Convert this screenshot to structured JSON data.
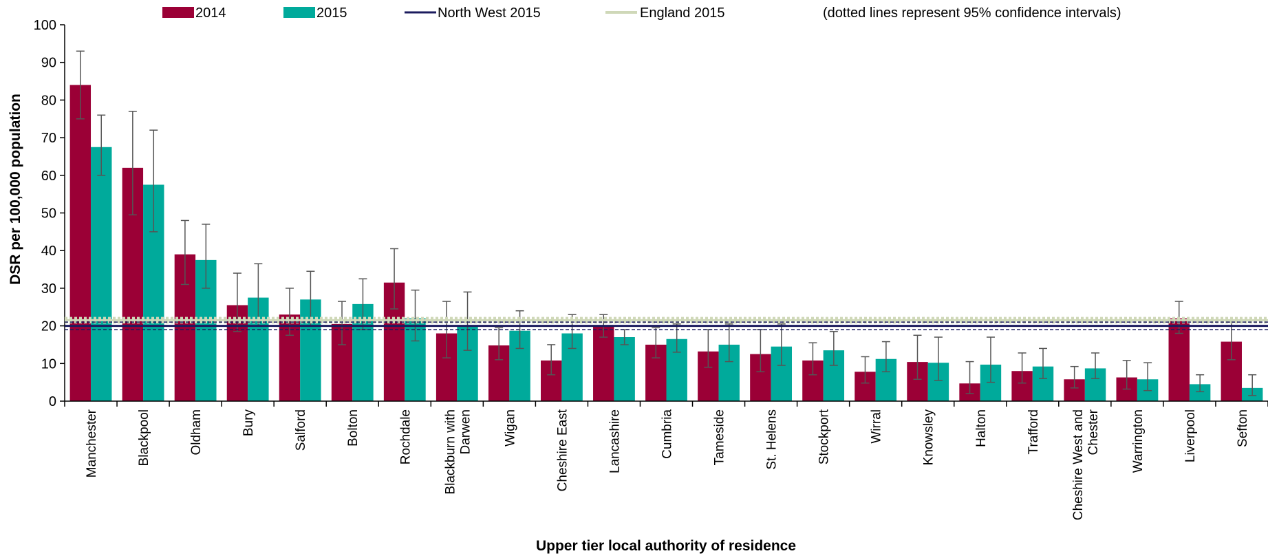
{
  "chart_data": {
    "type": "bar",
    "title": "",
    "xlabel": "Upper tier local authority of residence",
    "ylabel": "DSR per 100,000 population",
    "ylim": [
      0,
      100
    ],
    "yticks": [
      0,
      10,
      20,
      30,
      40,
      50,
      60,
      70,
      80,
      90,
      100
    ],
    "grid": false,
    "legend_position": "top",
    "note": "(dotted lines represent 95% confidence intervals)",
    "categories": [
      [
        "Manchester"
      ],
      [
        "Blackpool"
      ],
      [
        "Oldham"
      ],
      [
        "Bury"
      ],
      [
        "Salford"
      ],
      [
        "Bolton"
      ],
      [
        "Rochdale"
      ],
      [
        "Blackburn with",
        "Darwen"
      ],
      [
        "Wigan"
      ],
      [
        "Cheshire East"
      ],
      [
        "Lancashire"
      ],
      [
        "Cumbria"
      ],
      [
        "Tameside"
      ],
      [
        "St. Helens"
      ],
      [
        "Stockport"
      ],
      [
        "Wirral"
      ],
      [
        "Knowsley"
      ],
      [
        "Halton"
      ],
      [
        "Trafford"
      ],
      [
        "Cheshire West and",
        "Chester"
      ],
      [
        "Warrington"
      ],
      [
        "Liverpool"
      ],
      [
        "Sefton"
      ]
    ],
    "series": [
      {
        "name": "2014",
        "color": "#9b0036",
        "values": [
          84,
          62,
          39,
          25.5,
          23,
          20.5,
          31.5,
          18,
          14.8,
          10.8,
          20,
          15,
          13.2,
          12.5,
          10.8,
          7.8,
          10.4,
          4.7,
          8,
          5.8,
          6.3,
          22,
          15.8
        ],
        "ci_low": [
          75,
          49.5,
          31,
          18.5,
          17.5,
          15,
          24.5,
          11.5,
          11,
          7,
          17,
          11.5,
          9,
          7.8,
          7,
          4.8,
          5.8,
          2,
          4.8,
          3.5,
          3.2,
          18,
          11
        ],
        "ci_high": [
          93,
          77,
          48,
          34,
          30,
          26.5,
          40.5,
          26.5,
          19.5,
          15,
          23,
          19.5,
          19,
          19,
          15.5,
          11.8,
          17.5,
          10.5,
          12.8,
          9.2,
          10.8,
          26.5,
          21
        ]
      },
      {
        "name": "2015",
        "color": "#00aa9b",
        "values": [
          67.5,
          57.5,
          37.5,
          27.5,
          27,
          25.8,
          22,
          20,
          18.7,
          18,
          17,
          16.5,
          15,
          14.5,
          13.5,
          11.2,
          10.2,
          9.7,
          9.2,
          8.7,
          5.8,
          4.5,
          3.5
        ],
        "ci_low": [
          60,
          45,
          30,
          20,
          20,
          19,
          16,
          13.5,
          14,
          14,
          15,
          13,
          10.5,
          9.5,
          9.5,
          7.8,
          5.5,
          5,
          6,
          6,
          2.8,
          2.5,
          1.5
        ],
        "ci_high": [
          76,
          72,
          47,
          36.5,
          34.5,
          32.5,
          29.5,
          29,
          24,
          23,
          19,
          20.5,
          20.5,
          20.5,
          18.5,
          15.8,
          17,
          17,
          14,
          12.8,
          10.2,
          7,
          7
        ]
      }
    ],
    "reference_lines": [
      {
        "name": "North West 2015",
        "color": "#1b1b5e",
        "value": 20,
        "ci_low": 19,
        "ci_high": 21
      },
      {
        "name": "England 2015",
        "color": "#cfd8b8",
        "value": 21.5,
        "ci_low": 21,
        "ci_high": 22
      }
    ]
  }
}
